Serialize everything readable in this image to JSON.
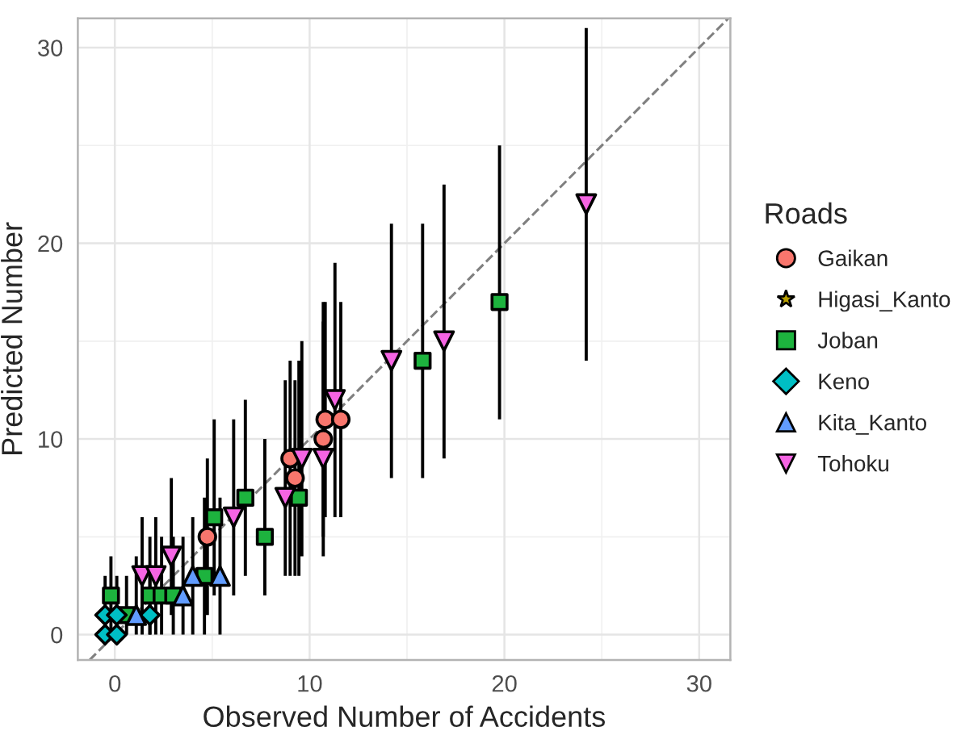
{
  "chart_data": {
    "type": "scatter",
    "xlabel": "Observed Number of Accidents",
    "ylabel": "Predicted Number",
    "legend_title": "Roads",
    "legend": "right",
    "grid": true,
    "xlim": [
      -1.9,
      31.6
    ],
    "ylim": [
      -1.3,
      31.5
    ],
    "xticks": [
      0,
      10,
      20,
      30
    ],
    "yticks": [
      0,
      10,
      20,
      30
    ],
    "series": [
      {
        "name": "Gaikan",
        "color": "#f8766d",
        "marker": "circle",
        "x": [
          4.75,
          9.0,
          9.25,
          10.7,
          10.8,
          11.6
        ],
        "values": [
          5,
          9,
          8,
          10,
          11,
          11
        ],
        "errors": [
          [
            1,
            9
          ],
          [
            3,
            14
          ],
          [
            3,
            13
          ],
          [
            5,
            17
          ],
          [
            6,
            17
          ],
          [
            6,
            17
          ]
        ]
      },
      {
        "name": "Higasi_Kanto",
        "color": "#b79f00",
        "marker": "star"
      },
      {
        "name": "Joban",
        "color": "#1db33e",
        "marker": "square",
        "x": [
          -0.2,
          0.6,
          1.8,
          2.4,
          3.0,
          4.6,
          5.1,
          6.7,
          7.7,
          9.45,
          15.8,
          19.75
        ],
        "values": [
          2,
          1,
          2,
          2,
          2,
          3,
          6,
          7,
          5,
          7,
          14,
          17
        ],
        "errors": [
          [
            0,
            4
          ],
          [
            0,
            3
          ],
          [
            0,
            5
          ],
          [
            0,
            5
          ],
          [
            0,
            5
          ],
          [
            0,
            7
          ],
          [
            2,
            11
          ],
          [
            3,
            12
          ],
          [
            2,
            10
          ],
          [
            3,
            14
          ],
          [
            8,
            21
          ],
          [
            11,
            25
          ]
        ]
      },
      {
        "name": "Keno",
        "color": "#00bfc4",
        "marker": "diamond",
        "x": [
          -0.5,
          0.1,
          -0.5,
          0.1,
          1.8
        ],
        "values": [
          0,
          0,
          1,
          1,
          1
        ],
        "errors": [
          [
            0,
            1
          ],
          null,
          [
            0,
            3
          ],
          [
            0.5,
            3
          ],
          [
            0,
            3
          ]
        ]
      },
      {
        "name": "Kita_Kanto",
        "color": "#619cff",
        "marker": "triangle",
        "x": [
          1.1,
          3.5,
          4.0,
          5.4
        ],
        "values": [
          1,
          2,
          3,
          3
        ],
        "errors": [
          [
            0,
            4
          ],
          [
            0,
            5
          ],
          [
            0,
            6
          ],
          [
            0,
            7
          ]
        ]
      },
      {
        "name": "Tohoku",
        "color": "#f564e3",
        "marker": "triangle_down",
        "x": [
          1.4,
          2.1,
          2.9,
          6.1,
          8.75,
          9.6,
          10.7,
          11.3,
          14.2,
          16.9,
          24.2
        ],
        "values": [
          3,
          3,
          4,
          6,
          7,
          9,
          9,
          12,
          14,
          15,
          22
        ],
        "errors": [
          [
            0,
            6
          ],
          [
            0,
            6
          ],
          [
            1,
            8
          ],
          [
            2,
            11
          ],
          [
            3,
            13
          ],
          [
            4,
            15
          ],
          [
            4,
            16
          ],
          [
            6,
            19
          ],
          [
            8,
            21
          ],
          [
            9,
            23
          ],
          [
            14,
            31
          ]
        ]
      },
      {
        "type": "line",
        "color": "#808080",
        "line_style": "dashed",
        "x": [
          -1.3,
          31.5
        ],
        "values": [
          -1.3,
          31.5
        ]
      }
    ]
  }
}
